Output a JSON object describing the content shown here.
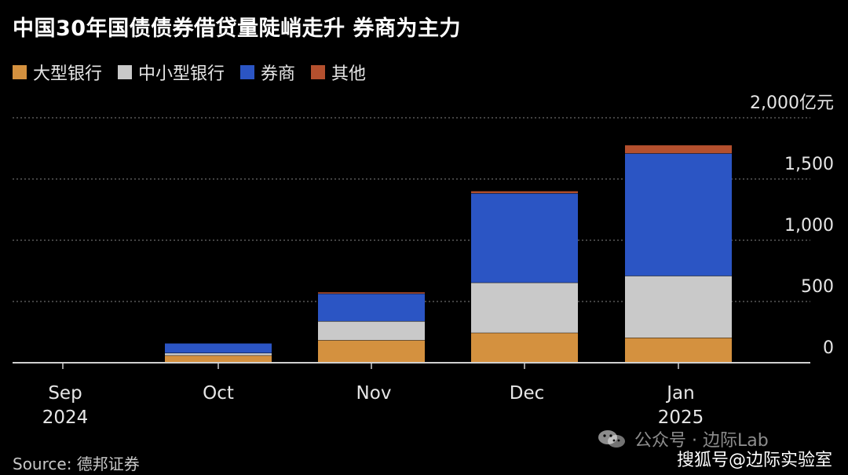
{
  "title": "中国30年国债债券借贷量陡峭走升 券商为主力",
  "legend": [
    {
      "name": "大型银行",
      "color": "#D4913F"
    },
    {
      "name": "中小型银行",
      "color": "#C9C9C9"
    },
    {
      "name": "券商",
      "color": "#2B55C4"
    },
    {
      "name": "其他",
      "color": "#B4502E"
    }
  ],
  "source": "Source: 德邦证券",
  "watermark": {
    "wechat": "公众号 · 边际Lab",
    "sohu": "搜狐号@边际实验室"
  },
  "chart_data": {
    "type": "bar",
    "stacked": true,
    "categories": [
      "Sep\n2024",
      "Oct",
      "Nov",
      "Dec",
      "Jan\n2025"
    ],
    "y_unit": "亿元",
    "ylim": [
      0,
      2000
    ],
    "yticks": [
      "0",
      "500",
      "1,000",
      "1,500",
      "2,000亿元"
    ],
    "ytick_values": [
      0,
      500,
      1000,
      1500,
      2000
    ],
    "grid": true,
    "legend_position": "top-left",
    "series": [
      {
        "name": "大型银行",
        "color": "#D4913F",
        "values": [
          0,
          60,
          185,
          245,
          205
        ]
      },
      {
        "name": "中小型银行",
        "color": "#C9C9C9",
        "values": [
          0,
          20,
          155,
          410,
          505
        ]
      },
      {
        "name": "券商",
        "color": "#2B55C4",
        "values": [
          0,
          80,
          225,
          730,
          1000
        ]
      },
      {
        "name": "其他",
        "color": "#B4502E",
        "values": [
          0,
          0,
          10,
          15,
          65
        ]
      }
    ]
  }
}
